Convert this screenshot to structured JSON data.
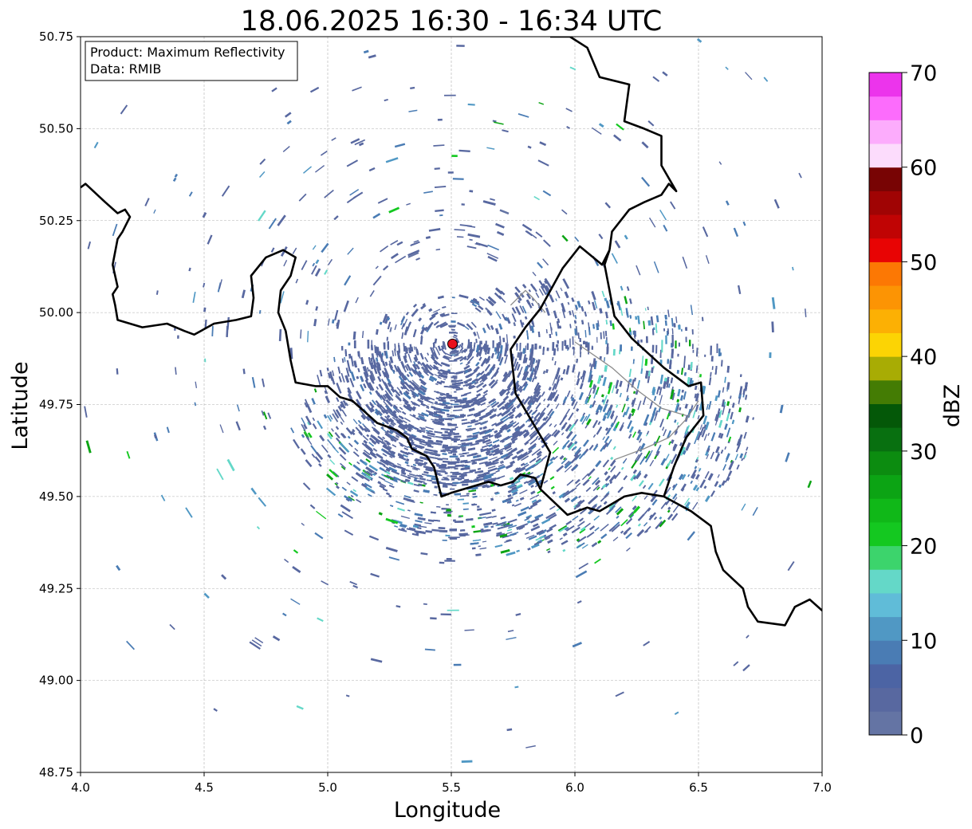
{
  "title": "18.06.2025 16:30 - 16:34 UTC",
  "xlabel": "Longitude",
  "ylabel": "Latitude",
  "info": {
    "line1": "Product: Maximum Reflectivity",
    "line2": "Data: RMIB"
  },
  "colorbar": {
    "label": "dBZ",
    "ticks": [
      "0",
      "10",
      "20",
      "30",
      "40",
      "50",
      "60",
      "70"
    ],
    "range": [
      0,
      70
    ],
    "step": 2.5,
    "colors": [
      "#6474a4",
      "#5868a0",
      "#4c64a4",
      "#4a7cb4",
      "#5098c4",
      "#60bcd8",
      "#64d8c8",
      "#3cd46c",
      "#14c820",
      "#10b818",
      "#0ca414",
      "#0c8c10",
      "#087010",
      "#045808",
      "#447c04",
      "#a8ac04",
      "#fcd404",
      "#fcb004",
      "#fc9404",
      "#fc7804",
      "#e80404",
      "#c00404",
      "#a00404",
      "#780404",
      "#fcdcfc",
      "#fcacfc",
      "#fc6cfc",
      "#ec34ec"
    ]
  },
  "chart_data": {
    "type": "heatmap",
    "title": "18.06.2025 16:30 - 16:34 UTC",
    "xlabel": "Longitude",
    "ylabel": "Latitude",
    "xlim": [
      4.0,
      7.0
    ],
    "ylim": [
      48.75,
      50.75
    ],
    "xticks": [
      "4.0",
      "4.5",
      "5.0",
      "5.5",
      "6.0",
      "6.5",
      "7.0"
    ],
    "yticks": [
      "48.75",
      "49.00",
      "49.25",
      "49.50",
      "49.75",
      "50.00",
      "50.25",
      "50.50",
      "50.75"
    ],
    "grid": true,
    "radar_site": {
      "lon": 5.505,
      "lat": 49.915,
      "color": "#e8101c"
    },
    "colorbar_label": "dBZ",
    "colorbar_range": [
      0,
      70
    ]
  },
  "borders": {
    "belgium_france": [
      [
        4.0,
        50.34
      ],
      [
        4.02,
        50.35
      ],
      [
        4.1,
        50.3
      ],
      [
        4.15,
        50.27
      ],
      [
        4.18,
        50.28
      ],
      [
        4.2,
        50.26
      ],
      [
        4.17,
        50.22
      ],
      [
        4.15,
        50.2
      ],
      [
        4.13,
        50.13
      ],
      [
        4.15,
        50.07
      ],
      [
        4.13,
        50.05
      ],
      [
        4.14,
        50.02
      ],
      [
        4.15,
        49.98
      ],
      [
        4.25,
        49.96
      ],
      [
        4.35,
        49.97
      ],
      [
        4.42,
        49.95
      ],
      [
        4.46,
        49.94
      ],
      [
        4.54,
        49.97
      ],
      [
        4.63,
        49.98
      ],
      [
        4.69,
        49.99
      ],
      [
        4.7,
        50.04
      ],
      [
        4.69,
        50.1
      ],
      [
        4.75,
        50.15
      ],
      [
        4.82,
        50.17
      ],
      [
        4.87,
        50.15
      ],
      [
        4.85,
        50.1
      ],
      [
        4.81,
        50.06
      ],
      [
        4.8,
        50.0
      ],
      [
        4.83,
        49.95
      ],
      [
        4.85,
        49.87
      ],
      [
        4.87,
        49.81
      ],
      [
        4.95,
        49.8
      ],
      [
        5.0,
        49.8
      ],
      [
        5.05,
        49.77
      ],
      [
        5.1,
        49.76
      ],
      [
        5.15,
        49.73
      ],
      [
        5.2,
        49.7
      ],
      [
        5.28,
        49.68
      ],
      [
        5.32,
        49.66
      ],
      [
        5.34,
        49.63
      ],
      [
        5.4,
        49.61
      ],
      [
        5.43,
        49.58
      ],
      [
        5.46,
        49.5
      ],
      [
        5.5,
        49.51
      ],
      [
        5.55,
        49.52
      ],
      [
        5.6,
        49.53
      ],
      [
        5.65,
        49.54
      ],
      [
        5.7,
        49.53
      ],
      [
        5.75,
        49.54
      ],
      [
        5.78,
        49.56
      ],
      [
        5.84,
        49.55
      ],
      [
        5.86,
        49.52
      ]
    ],
    "belgium_luxembourg": [
      [
        5.86,
        49.52
      ],
      [
        5.9,
        49.62
      ],
      [
        5.83,
        49.7
      ],
      [
        5.76,
        49.78
      ],
      [
        5.74,
        49.9
      ],
      [
        5.8,
        49.96
      ],
      [
        5.86,
        50.01
      ],
      [
        5.95,
        50.12
      ],
      [
        6.02,
        50.18
      ],
      [
        6.11,
        50.13
      ],
      [
        6.14,
        50.17
      ]
    ],
    "belgium_germany": [
      [
        6.14,
        50.17
      ],
      [
        6.15,
        50.22
      ],
      [
        6.22,
        50.28
      ],
      [
        6.28,
        50.3
      ],
      [
        6.35,
        50.32
      ],
      [
        6.38,
        50.35
      ],
      [
        6.41,
        50.33
      ],
      [
        6.35,
        50.4
      ],
      [
        6.35,
        50.48
      ],
      [
        6.28,
        50.5
      ],
      [
        6.2,
        50.52
      ],
      [
        6.22,
        50.62
      ],
      [
        6.1,
        50.64
      ],
      [
        6.05,
        50.72
      ],
      [
        5.98,
        50.75
      ],
      [
        5.9,
        50.75
      ]
    ],
    "luxembourg_germany": [
      [
        6.14,
        50.17
      ],
      [
        6.12,
        50.13
      ],
      [
        6.16,
        49.99
      ],
      [
        6.23,
        49.93
      ],
      [
        6.36,
        49.85
      ],
      [
        6.46,
        49.8
      ],
      [
        6.51,
        49.81
      ],
      [
        6.52,
        49.72
      ],
      [
        6.45,
        49.66
      ],
      [
        6.4,
        49.58
      ],
      [
        6.36,
        49.5
      ]
    ],
    "luxembourg_france": [
      [
        5.86,
        49.52
      ],
      [
        5.97,
        49.45
      ],
      [
        6.05,
        49.47
      ],
      [
        6.1,
        49.46
      ],
      [
        6.2,
        49.5
      ],
      [
        6.27,
        49.51
      ],
      [
        6.36,
        49.5
      ]
    ],
    "germany_france": [
      [
        6.36,
        49.5
      ],
      [
        6.47,
        49.46
      ],
      [
        6.55,
        49.42
      ],
      [
        6.57,
        49.35
      ],
      [
        6.6,
        49.3
      ],
      [
        6.68,
        49.25
      ],
      [
        6.7,
        49.2
      ],
      [
        6.74,
        49.16
      ],
      [
        6.85,
        49.15
      ],
      [
        6.89,
        49.2
      ],
      [
        6.95,
        49.22
      ],
      [
        7.0,
        49.19
      ],
      [
        7.02,
        49.18
      ]
    ]
  },
  "rivers": {
    "meuse": [
      [
        5.88,
        50.0
      ],
      [
        5.83,
        50.04
      ],
      [
        5.8,
        50.06
      ],
      [
        5.74,
        50.02
      ]
    ],
    "moselle": [
      [
        6.16,
        49.6
      ],
      [
        6.28,
        49.63
      ],
      [
        6.38,
        49.66
      ],
      [
        6.45,
        49.71
      ],
      [
        6.5,
        49.76
      ]
    ],
    "sure": [
      [
        6.0,
        49.92
      ],
      [
        6.15,
        49.85
      ],
      [
        6.25,
        49.79
      ],
      [
        6.35,
        49.74
      ],
      [
        6.45,
        49.72
      ]
    ]
  }
}
